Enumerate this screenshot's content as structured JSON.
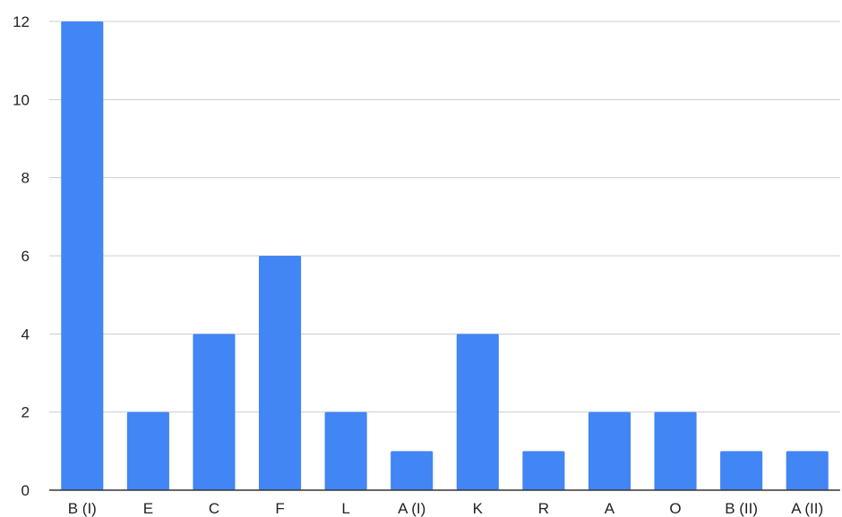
{
  "chart_data": {
    "type": "bar",
    "title": "",
    "xlabel": "",
    "ylabel": "",
    "categories": [
      "B (I)",
      "E",
      "C",
      "F",
      "L",
      "A (I)",
      "K",
      "R",
      "A",
      "O",
      "B (II)",
      "A (II)"
    ],
    "values": [
      12,
      2,
      4,
      6,
      2,
      1,
      4,
      1,
      2,
      2,
      1,
      1
    ],
    "ylim": [
      0,
      12
    ],
    "yticks": [
      0,
      2,
      4,
      6,
      8,
      10,
      12
    ],
    "grid": true,
    "legend": "none",
    "bar_color": "#4285f4"
  }
}
